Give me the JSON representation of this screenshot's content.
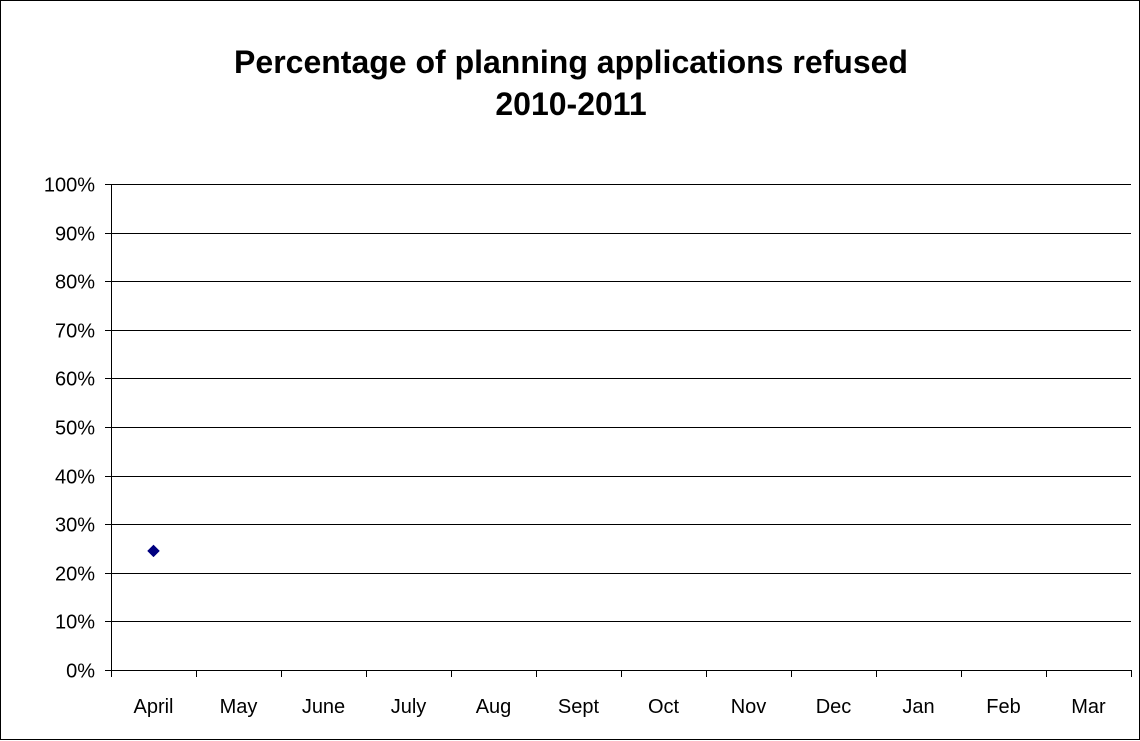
{
  "chart_data": {
    "type": "scatter",
    "title": "Percentage of planning applications refused",
    "subtitle": "2010-2011",
    "xlabel": "",
    "ylabel": "",
    "categories": [
      "April",
      "May",
      "June",
      "July",
      "Aug",
      "Sept",
      "Oct",
      "Nov",
      "Dec",
      "Jan",
      "Feb",
      "Mar"
    ],
    "series": [
      {
        "values": [
          24.5,
          null,
          null,
          null,
          null,
          null,
          null,
          null,
          null,
          null,
          null,
          null
        ],
        "color": "#000080",
        "marker": "diamond"
      }
    ],
    "ylim": [
      0,
      100
    ],
    "yticks": [
      0,
      10,
      20,
      30,
      40,
      50,
      60,
      70,
      80,
      90,
      100
    ],
    "ytick_labels": [
      "0%",
      "10%",
      "20%",
      "30%",
      "40%",
      "50%",
      "60%",
      "70%",
      "80%",
      "90%",
      "100%"
    ],
    "grid": "horizontal major",
    "legend": "none"
  }
}
